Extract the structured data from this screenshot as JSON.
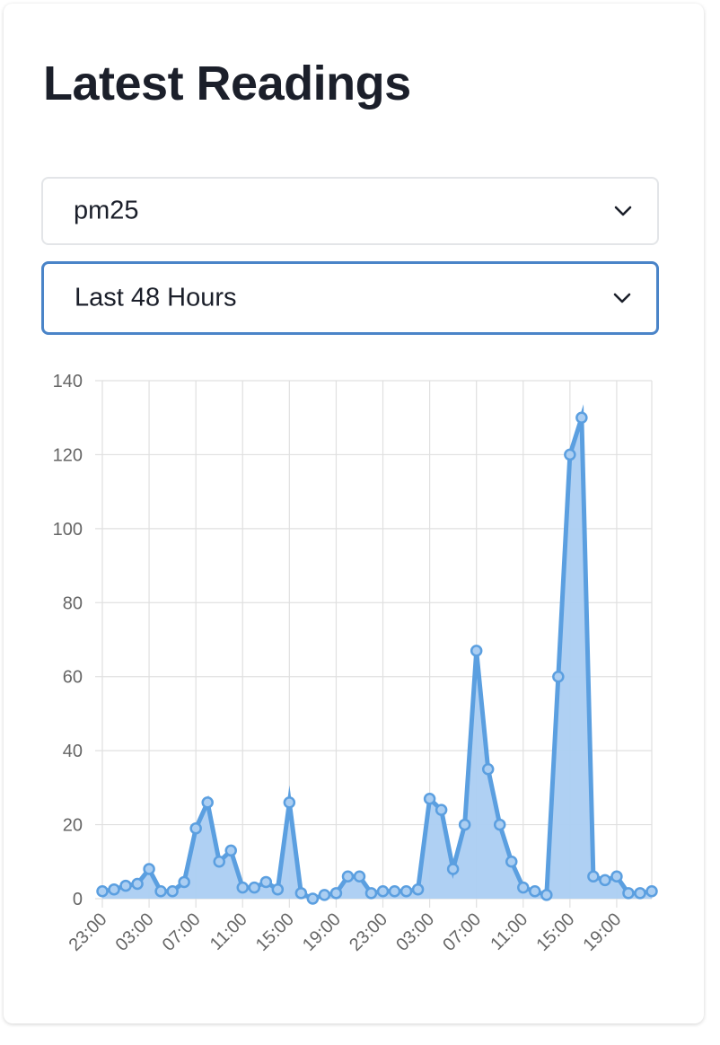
{
  "card": {
    "title": "Latest Readings"
  },
  "selectors": {
    "metric": {
      "value": "pm25",
      "icon": "chevron-down-icon"
    },
    "range": {
      "value": "Last 48 Hours",
      "icon": "chevron-down-icon"
    }
  },
  "colors": {
    "series_line": "#5b9fe0",
    "series_fill": "#abcef2",
    "grid": "#e0e0e0",
    "tick_text": "#666666",
    "focus_border": "#4a84c8"
  },
  "chart_data": {
    "type": "area",
    "x_tick_labels": [
      "23:00",
      "03:00",
      "07:00",
      "11:00",
      "15:00",
      "19:00",
      "23:00",
      "03:00",
      "07:00",
      "11:00",
      "15:00",
      "19:00"
    ],
    "y_ticks": [
      0,
      20,
      40,
      60,
      80,
      100,
      120,
      140
    ],
    "ylim": [
      0,
      140
    ],
    "grid": true,
    "legend": "none",
    "series": [
      {
        "values": [
          2,
          2.5,
          3.5,
          4,
          8,
          2,
          2,
          4.5,
          19,
          26,
          10,
          13,
          3,
          3,
          4.5,
          2.5,
          26,
          1.5,
          0,
          1,
          1.5,
          6,
          6,
          1.5,
          2,
          2,
          2,
          2.5,
          27,
          24,
          8,
          20,
          67,
          35,
          20,
          10,
          3,
          2,
          1,
          60,
          120,
          130,
          6,
          5,
          6,
          1.5,
          1.5,
          2
        ]
      }
    ]
  }
}
